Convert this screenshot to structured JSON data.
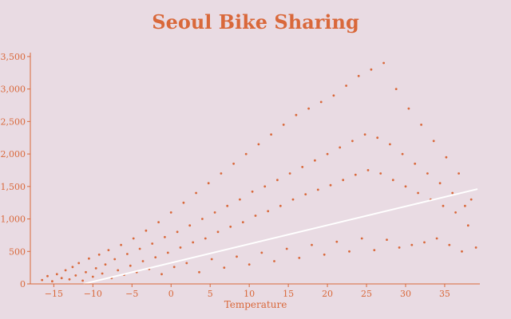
{
  "chart_data": {
    "type": "scatter",
    "title": "Seoul Bike Sharing",
    "xlabel": "Temperature",
    "ylabel": "",
    "xlim": [
      -18,
      39.5
    ],
    "ylim": [
      0,
      3560
    ],
    "x_ticks": [
      -15,
      -10,
      -5,
      0,
      5,
      10,
      15,
      20,
      25,
      30,
      35
    ],
    "x_tick_labels": [
      "−15",
      "−10",
      "−5",
      "0",
      "5",
      "10",
      "15",
      "20",
      "25",
      "30",
      "35"
    ],
    "y_ticks": [
      0,
      500,
      1000,
      1500,
      2000,
      2500,
      3000,
      3500
    ],
    "y_tick_labels": [
      "0",
      "500",
      "1,000",
      "1,500",
      "2,000",
      "2,500",
      "3,000",
      "3,500"
    ],
    "series": [
      {
        "points": [
          [
            -16.5,
            60
          ],
          [
            -15.8,
            120
          ],
          [
            -15.2,
            40
          ],
          [
            -14.6,
            150
          ],
          [
            -14.0,
            90
          ],
          [
            -13.5,
            210
          ],
          [
            -13.0,
            70
          ],
          [
            -12.6,
            260
          ],
          [
            -12.2,
            130
          ],
          [
            -11.8,
            320
          ],
          [
            -11.3,
            50
          ],
          [
            -10.9,
            180
          ],
          [
            -10.5,
            390
          ],
          [
            -10.0,
            110
          ],
          [
            -9.6,
            240
          ],
          [
            -9.2,
            450
          ],
          [
            -8.8,
            160
          ],
          [
            -8.4,
            300
          ],
          [
            -8.0,
            520
          ],
          [
            -7.6,
            90
          ],
          [
            -7.2,
            380
          ],
          [
            -6.8,
            210
          ],
          [
            -6.4,
            600
          ],
          [
            -6.0,
            140
          ],
          [
            -5.6,
            460
          ],
          [
            -5.2,
            280
          ],
          [
            -4.8,
            700
          ],
          [
            -4.4,
            180
          ],
          [
            -4.0,
            540
          ],
          [
            -3.6,
            350
          ],
          [
            -3.2,
            820
          ],
          [
            -2.8,
            230
          ],
          [
            -2.4,
            620
          ],
          [
            -2.0,
            410
          ],
          [
            -1.6,
            950
          ],
          [
            -1.2,
            150
          ],
          [
            -0.8,
            720
          ],
          [
            -0.4,
            480
          ],
          [
            0.0,
            1100
          ],
          [
            0.4,
            260
          ],
          [
            0.8,
            800
          ],
          [
            1.2,
            560
          ],
          [
            1.6,
            1250
          ],
          [
            2.0,
            320
          ],
          [
            2.4,
            900
          ],
          [
            2.8,
            640
          ],
          [
            3.2,
            1400
          ],
          [
            3.6,
            180
          ],
          [
            4.0,
            1000
          ],
          [
            4.4,
            700
          ],
          [
            4.8,
            1550
          ],
          [
            5.2,
            380
          ],
          [
            5.6,
            1100
          ],
          [
            6.0,
            800
          ],
          [
            6.4,
            1700
          ],
          [
            6.8,
            250
          ],
          [
            7.2,
            1200
          ],
          [
            7.6,
            880
          ],
          [
            8.0,
            1850
          ],
          [
            8.4,
            420
          ],
          [
            8.8,
            1300
          ],
          [
            9.2,
            950
          ],
          [
            9.6,
            2000
          ],
          [
            10.0,
            300
          ],
          [
            10.4,
            1420
          ],
          [
            10.8,
            1050
          ],
          [
            11.2,
            2150
          ],
          [
            11.6,
            480
          ],
          [
            12.0,
            1500
          ],
          [
            12.4,
            1120
          ],
          [
            12.8,
            2300
          ],
          [
            13.2,
            350
          ],
          [
            13.6,
            1600
          ],
          [
            14.0,
            1200
          ],
          [
            14.4,
            2450
          ],
          [
            14.8,
            540
          ],
          [
            15.2,
            1700
          ],
          [
            15.6,
            1300
          ],
          [
            16.0,
            2600
          ],
          [
            16.4,
            400
          ],
          [
            16.8,
            1800
          ],
          [
            17.2,
            1380
          ],
          [
            17.6,
            2700
          ],
          [
            18.0,
            600
          ],
          [
            18.4,
            1900
          ],
          [
            18.8,
            1450
          ],
          [
            19.2,
            2800
          ],
          [
            19.6,
            450
          ],
          [
            20.0,
            2000
          ],
          [
            20.4,
            1520
          ],
          [
            20.8,
            2900
          ],
          [
            21.2,
            650
          ],
          [
            21.6,
            2100
          ],
          [
            22.0,
            1600
          ],
          [
            22.4,
            3050
          ],
          [
            22.8,
            500
          ],
          [
            23.2,
            2200
          ],
          [
            23.6,
            1680
          ],
          [
            24.0,
            3200
          ],
          [
            24.4,
            700
          ],
          [
            24.8,
            2300
          ],
          [
            25.2,
            1750
          ],
          [
            25.6,
            3300
          ],
          [
            26.0,
            520
          ],
          [
            26.4,
            2250
          ],
          [
            26.8,
            1700
          ],
          [
            27.2,
            3400
          ],
          [
            27.6,
            680
          ],
          [
            28.0,
            2150
          ],
          [
            28.4,
            1600
          ],
          [
            28.8,
            3000
          ],
          [
            29.2,
            560
          ],
          [
            29.6,
            2000
          ],
          [
            30.0,
            1500
          ],
          [
            30.4,
            2700
          ],
          [
            30.8,
            600
          ],
          [
            31.2,
            1850
          ],
          [
            31.6,
            1400
          ],
          [
            32.0,
            2450
          ],
          [
            32.4,
            640
          ],
          [
            32.8,
            1700
          ],
          [
            33.2,
            1300
          ],
          [
            33.6,
            2200
          ],
          [
            34.0,
            700
          ],
          [
            34.4,
            1550
          ],
          [
            34.8,
            1200
          ],
          [
            35.2,
            1950
          ],
          [
            35.6,
            600
          ],
          [
            36.0,
            1400
          ],
          [
            36.4,
            1100
          ],
          [
            36.8,
            1700
          ],
          [
            37.2,
            500
          ],
          [
            37.6,
            1200
          ],
          [
            38.0,
            900
          ],
          [
            38.4,
            1300
          ],
          [
            39.0,
            560
          ]
        ]
      }
    ],
    "trendline": {
      "x": [
        -11.2,
        39.2
      ],
      "y": [
        0,
        1460
      ]
    },
    "colors": {
      "points": "#d9683a",
      "trend": "#ffffff",
      "background": "#e9dbe3"
    },
    "grid": false
  }
}
